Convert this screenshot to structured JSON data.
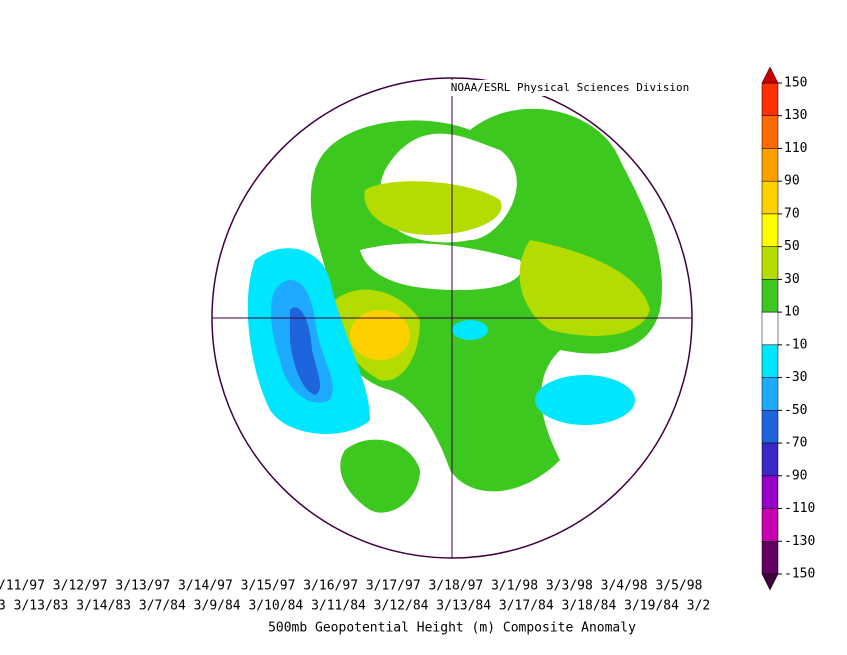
{
  "header": {
    "title": "NOAA/ESRL Physical Sciences Division"
  },
  "colorbar": {
    "ticks": [
      150,
      130,
      110,
      90,
      70,
      50,
      30,
      10,
      -10,
      -30,
      -50,
      -70,
      -90,
      -110,
      -130,
      -150
    ],
    "colors": [
      "#ff3000",
      "#ff6a00",
      "#ffa000",
      "#ffd000",
      "#ffff00",
      "#b4dc00",
      "#3cc81e",
      "#ffffff",
      "#00e6ff",
      "#1eaaff",
      "#1e64dc",
      "#3c28c8",
      "#9600c8",
      "#c800b4",
      "#640064"
    ],
    "over_color": "#c80000",
    "under_color": "#400040"
  },
  "dates": [
    "/11/97 3/12/97 3/13/97 3/14/97 3/15/97 3/16/97 3/17/97 3/18/97 3/1/98 3/3/98 3/4/98 3/5/98",
    "3 3/13/83 3/14/83 3/7/84 3/9/84 3/10/84 3/11/84 3/12/84 3/13/84 3/17/84 3/18/84 3/19/84 3/2"
  ],
  "caption": "500mb Geopotential Height (m) Composite Anomaly"
}
